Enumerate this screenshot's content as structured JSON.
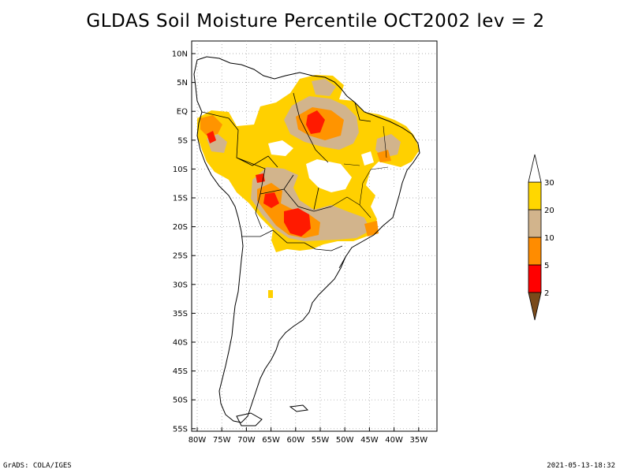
{
  "title": "GLDAS Soil Moisture Percentile OCT2002 lev = 2",
  "footer": {
    "left": "GrADS: COLA/IGES",
    "right": "2021-05-13-18:32"
  },
  "map": {
    "lat_labels": [
      "10N",
      "5N",
      "EQ",
      "5S",
      "10S",
      "15S",
      "20S",
      "25S",
      "30S",
      "35S",
      "40S",
      "45S",
      "50S",
      "55S"
    ],
    "lon_labels": [
      "80W",
      "75W",
      "70W",
      "65W",
      "60W",
      "55W",
      "50W",
      "45W",
      "40W",
      "35W"
    ]
  },
  "legend": {
    "bins": [
      {
        "color": "#7a4a1a"
      },
      {
        "color": "#ff0000",
        "label": "2"
      },
      {
        "color": "#ff8c00",
        "label": "5"
      },
      {
        "color": "#d2b48c",
        "label": "10"
      },
      {
        "color": "#ffd700",
        "label": "20"
      },
      {
        "color": "#ffffff",
        "label": "30"
      }
    ]
  },
  "colors": {
    "yellow": "#ffd000",
    "orange": "#ff9400",
    "tan": "#d2b48c",
    "red": "#ff1a00"
  }
}
